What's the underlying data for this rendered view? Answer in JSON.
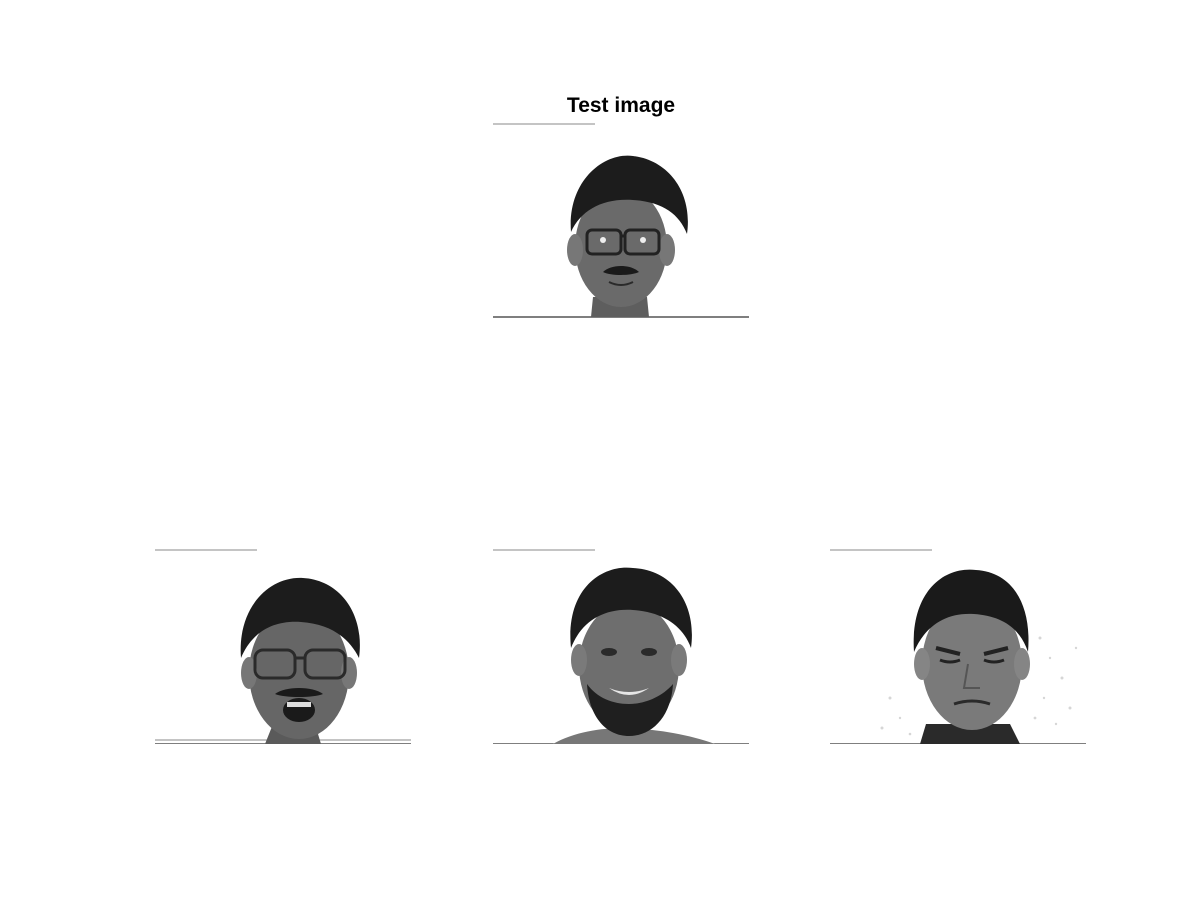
{
  "figure": {
    "title": "Test image"
  },
  "panels": [
    {
      "role": "test",
      "description_icon": "face-portrait-glasses-mustache"
    },
    {
      "role": "match-1",
      "description_icon": "face-portrait-glasses-mouth-open"
    },
    {
      "role": "match-2",
      "description_icon": "face-portrait-beard-smiling"
    },
    {
      "role": "match-3",
      "description_icon": "face-portrait-squinting"
    }
  ],
  "colors": {
    "background": "#ffffff",
    "axis_line": "#333333",
    "hair": "#1a1a1a",
    "skin_dark": "#4a4a4a",
    "skin_mid": "#6a6a6a",
    "skin_light": "#8a8a8a"
  }
}
